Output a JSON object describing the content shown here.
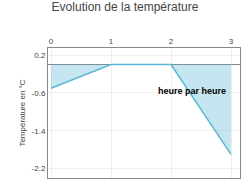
{
  "chart_data": {
    "type": "line",
    "title": "Evolution de la température",
    "ylabel": "Température en °C",
    "x": [
      0,
      1,
      2,
      3
    ],
    "series": [
      {
        "name": "Température",
        "color": "#5ab8d4",
        "values": [
          -0.5,
          0.0,
          0.0,
          -1.9
        ]
      }
    ],
    "xlim": [
      -0.05,
      3.15
    ],
    "xticks": [
      0,
      1,
      2,
      3
    ],
    "ylim": [
      -2.4,
      0.35
    ],
    "yticks": [
      0.2,
      -0.6,
      -1.4,
      -2.2
    ],
    "annotations": [
      {
        "text": "heure par heure",
        "x": 1.75,
        "y": -0.42
      }
    ],
    "grid": true
  }
}
